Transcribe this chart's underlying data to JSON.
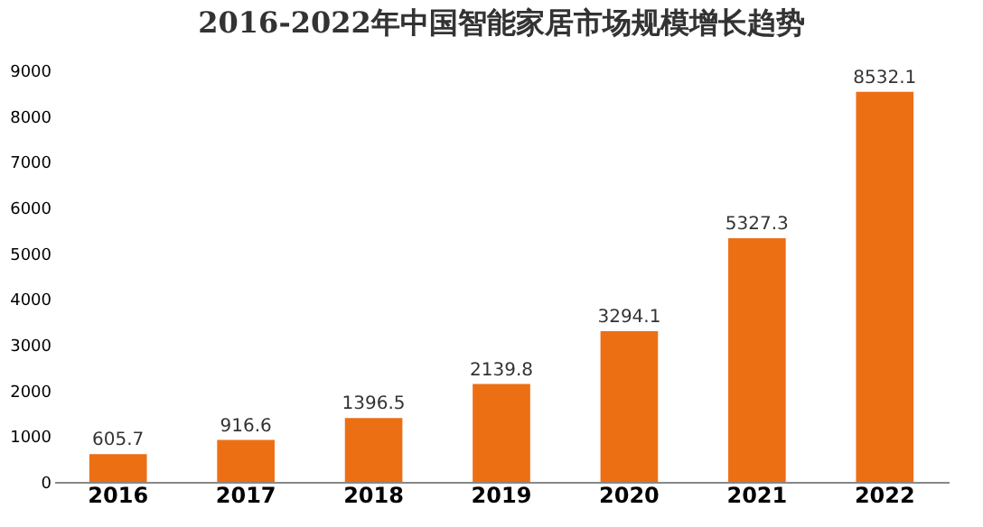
{
  "chart_data": {
    "type": "bar",
    "title": "2016-2022年中国智能家居市场规模增长趋势",
    "categories": [
      "2016",
      "2017",
      "2018",
      "2019",
      "2020",
      "2021",
      "2022"
    ],
    "values": [
      605.7,
      916.6,
      1396.5,
      2139.8,
      3294.1,
      5327.3,
      8532.1
    ],
    "color": "#ec6f14",
    "data_labels": true,
    "ylim": [
      0,
      9000
    ],
    "yticks": [
      0,
      1000,
      2000,
      3000,
      4000,
      5000,
      6000,
      7000,
      8000,
      9000
    ],
    "grid": false
  }
}
